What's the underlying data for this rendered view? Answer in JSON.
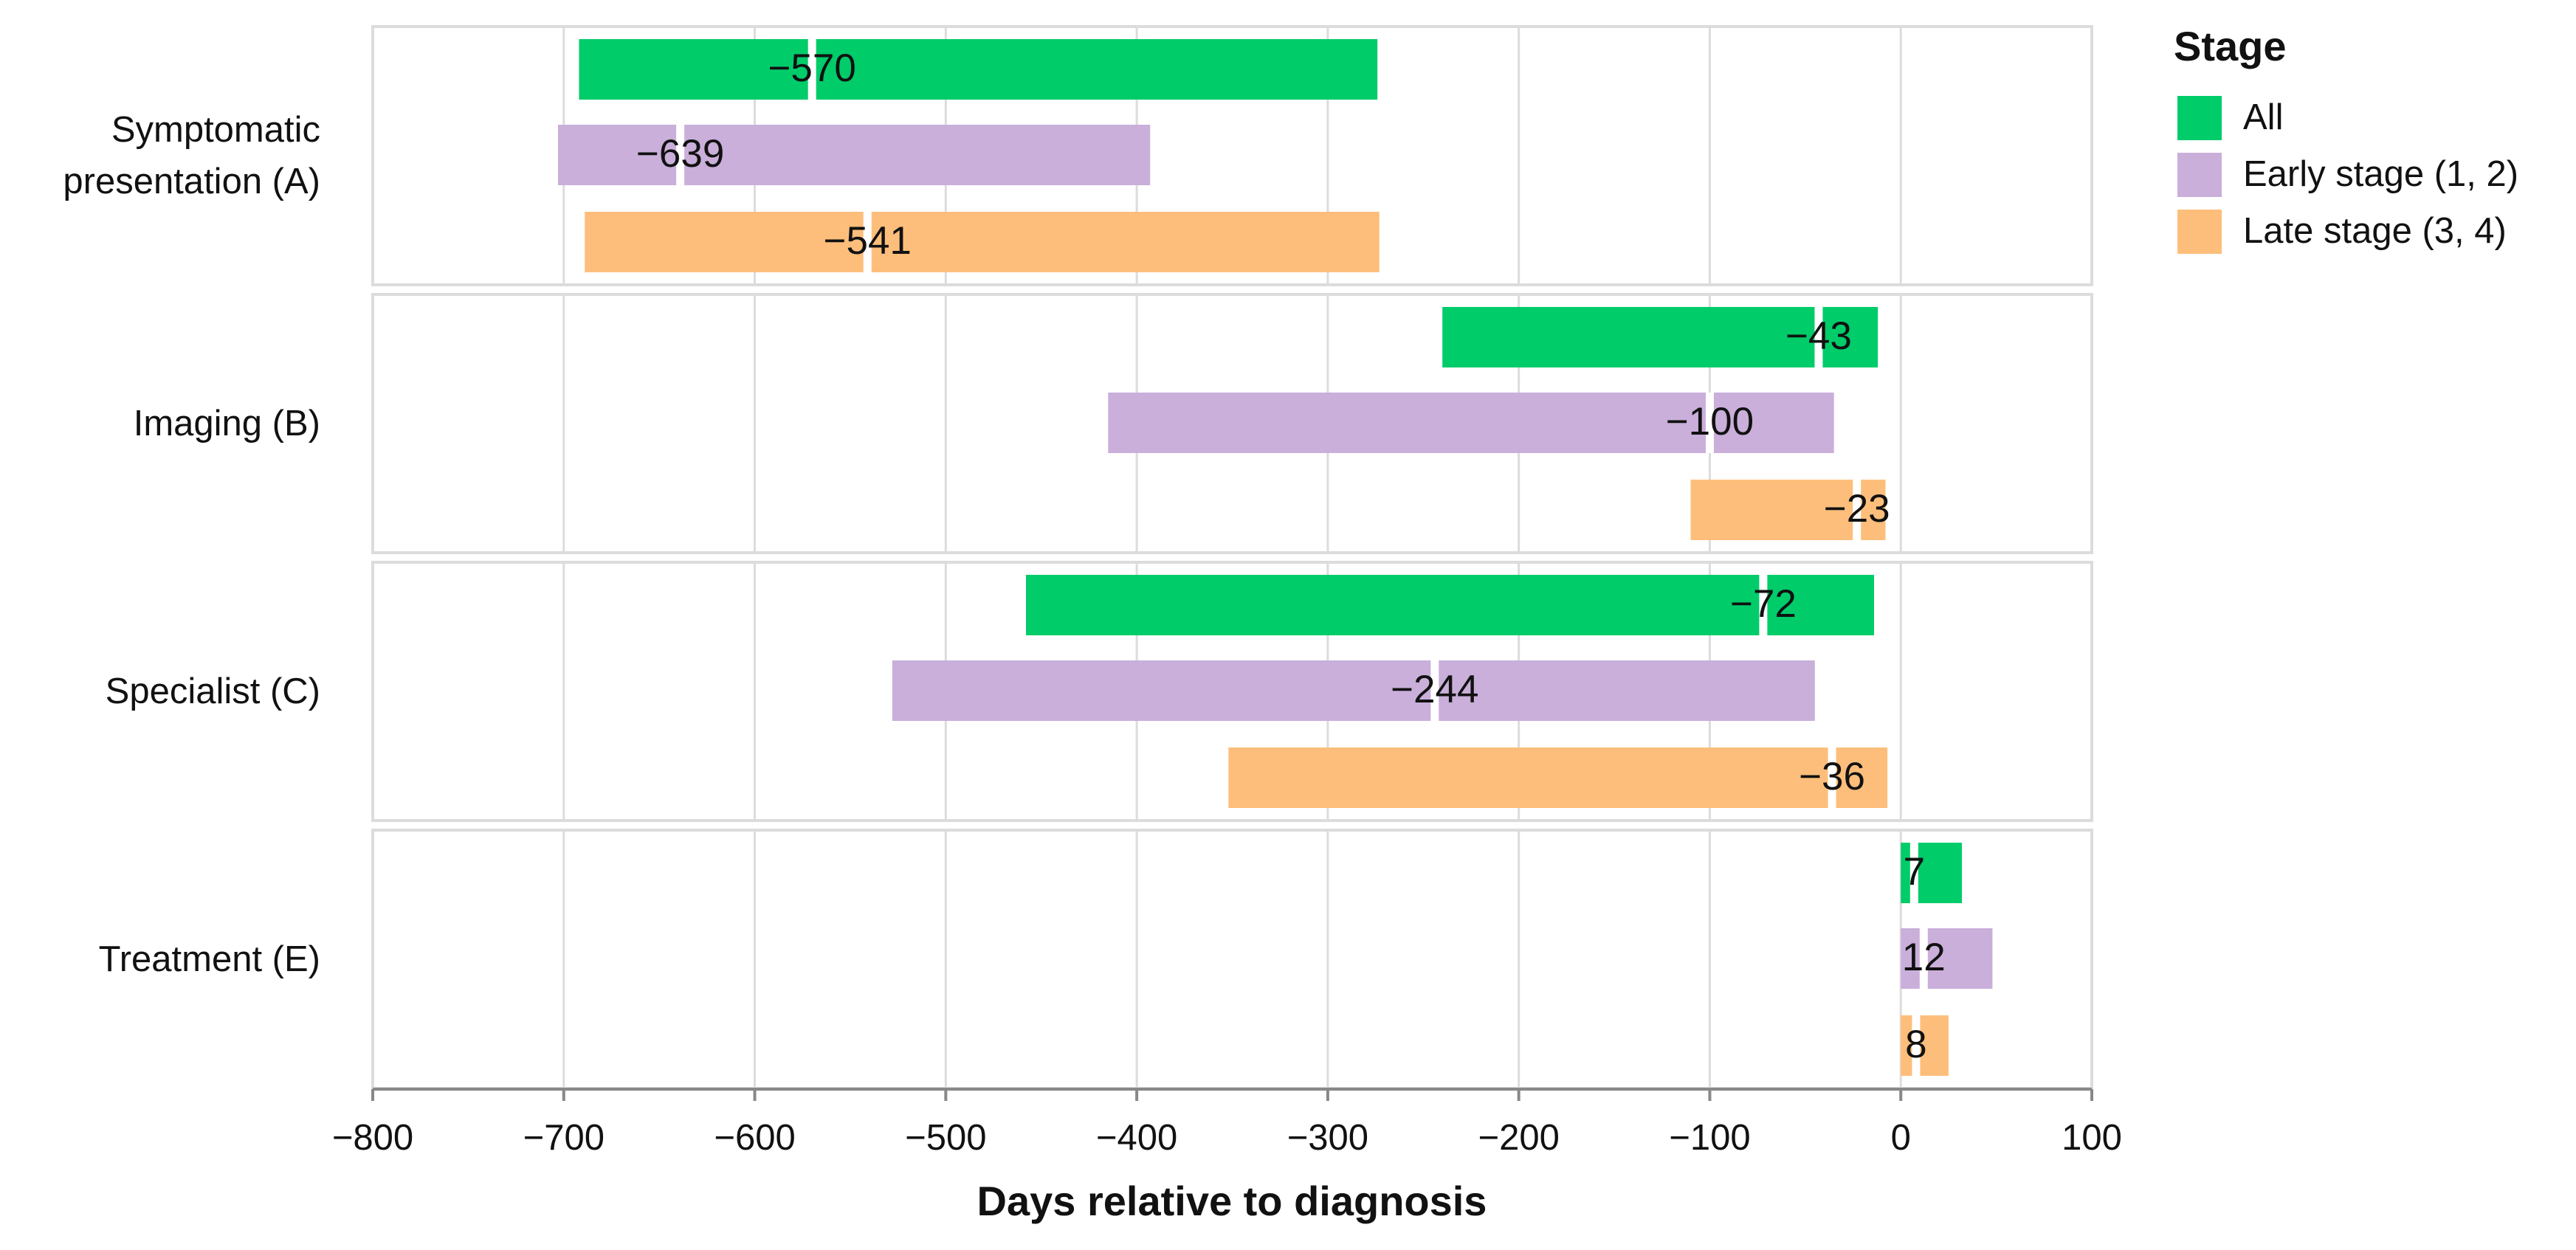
{
  "chart_data": {
    "type": "range-bar",
    "xlabel": "Days relative to diagnosis",
    "legend_title": "Stage",
    "legend_position": "right",
    "grid": true,
    "categories": [
      "Symptomatic presentation (A)",
      "Imaging (B)",
      "Specialist (C)",
      "Treatment (E)"
    ],
    "series": [
      {
        "name": "All",
        "color": "#00cc6a",
        "start": [
          -692,
          -240,
          -458,
          0
        ],
        "end": [
          -274,
          -12,
          -14,
          32
        ],
        "values": [
          -570,
          -43,
          -72,
          7
        ],
        "value_labels": [
          "−570",
          "−43",
          "−72",
          "7"
        ]
      },
      {
        "name": "Early stage (1, 2)",
        "color": "#c9afda",
        "start": [
          -703,
          -415,
          -528,
          0
        ],
        "end": [
          -393,
          -35,
          -45,
          48
        ],
        "values": [
          -639,
          -100,
          -244,
          12
        ],
        "value_labels": [
          "−639",
          "−100",
          "−244",
          "12"
        ]
      },
      {
        "name": "Late stage (3, 4)",
        "color": "#fdbe7b",
        "start": [
          -689,
          -110,
          -352,
          0
        ],
        "end": [
          -273,
          -8,
          -7,
          25
        ],
        "values": [
          -541,
          -23,
          -36,
          8
        ],
        "value_labels": [
          "−541",
          "−23",
          "−36",
          "8"
        ]
      }
    ],
    "xlim": [
      -800,
      100
    ],
    "xticks": [
      {
        "value": -800,
        "label": "−800"
      },
      {
        "value": -700,
        "label": "−700"
      },
      {
        "value": -600,
        "label": "−600"
      },
      {
        "value": -500,
        "label": "−500"
      },
      {
        "value": -400,
        "label": "−400"
      },
      {
        "value": -300,
        "label": "−300"
      },
      {
        "value": -200,
        "label": "−200"
      },
      {
        "value": -100,
        "label": "−100"
      },
      0,
      100
    ]
  }
}
